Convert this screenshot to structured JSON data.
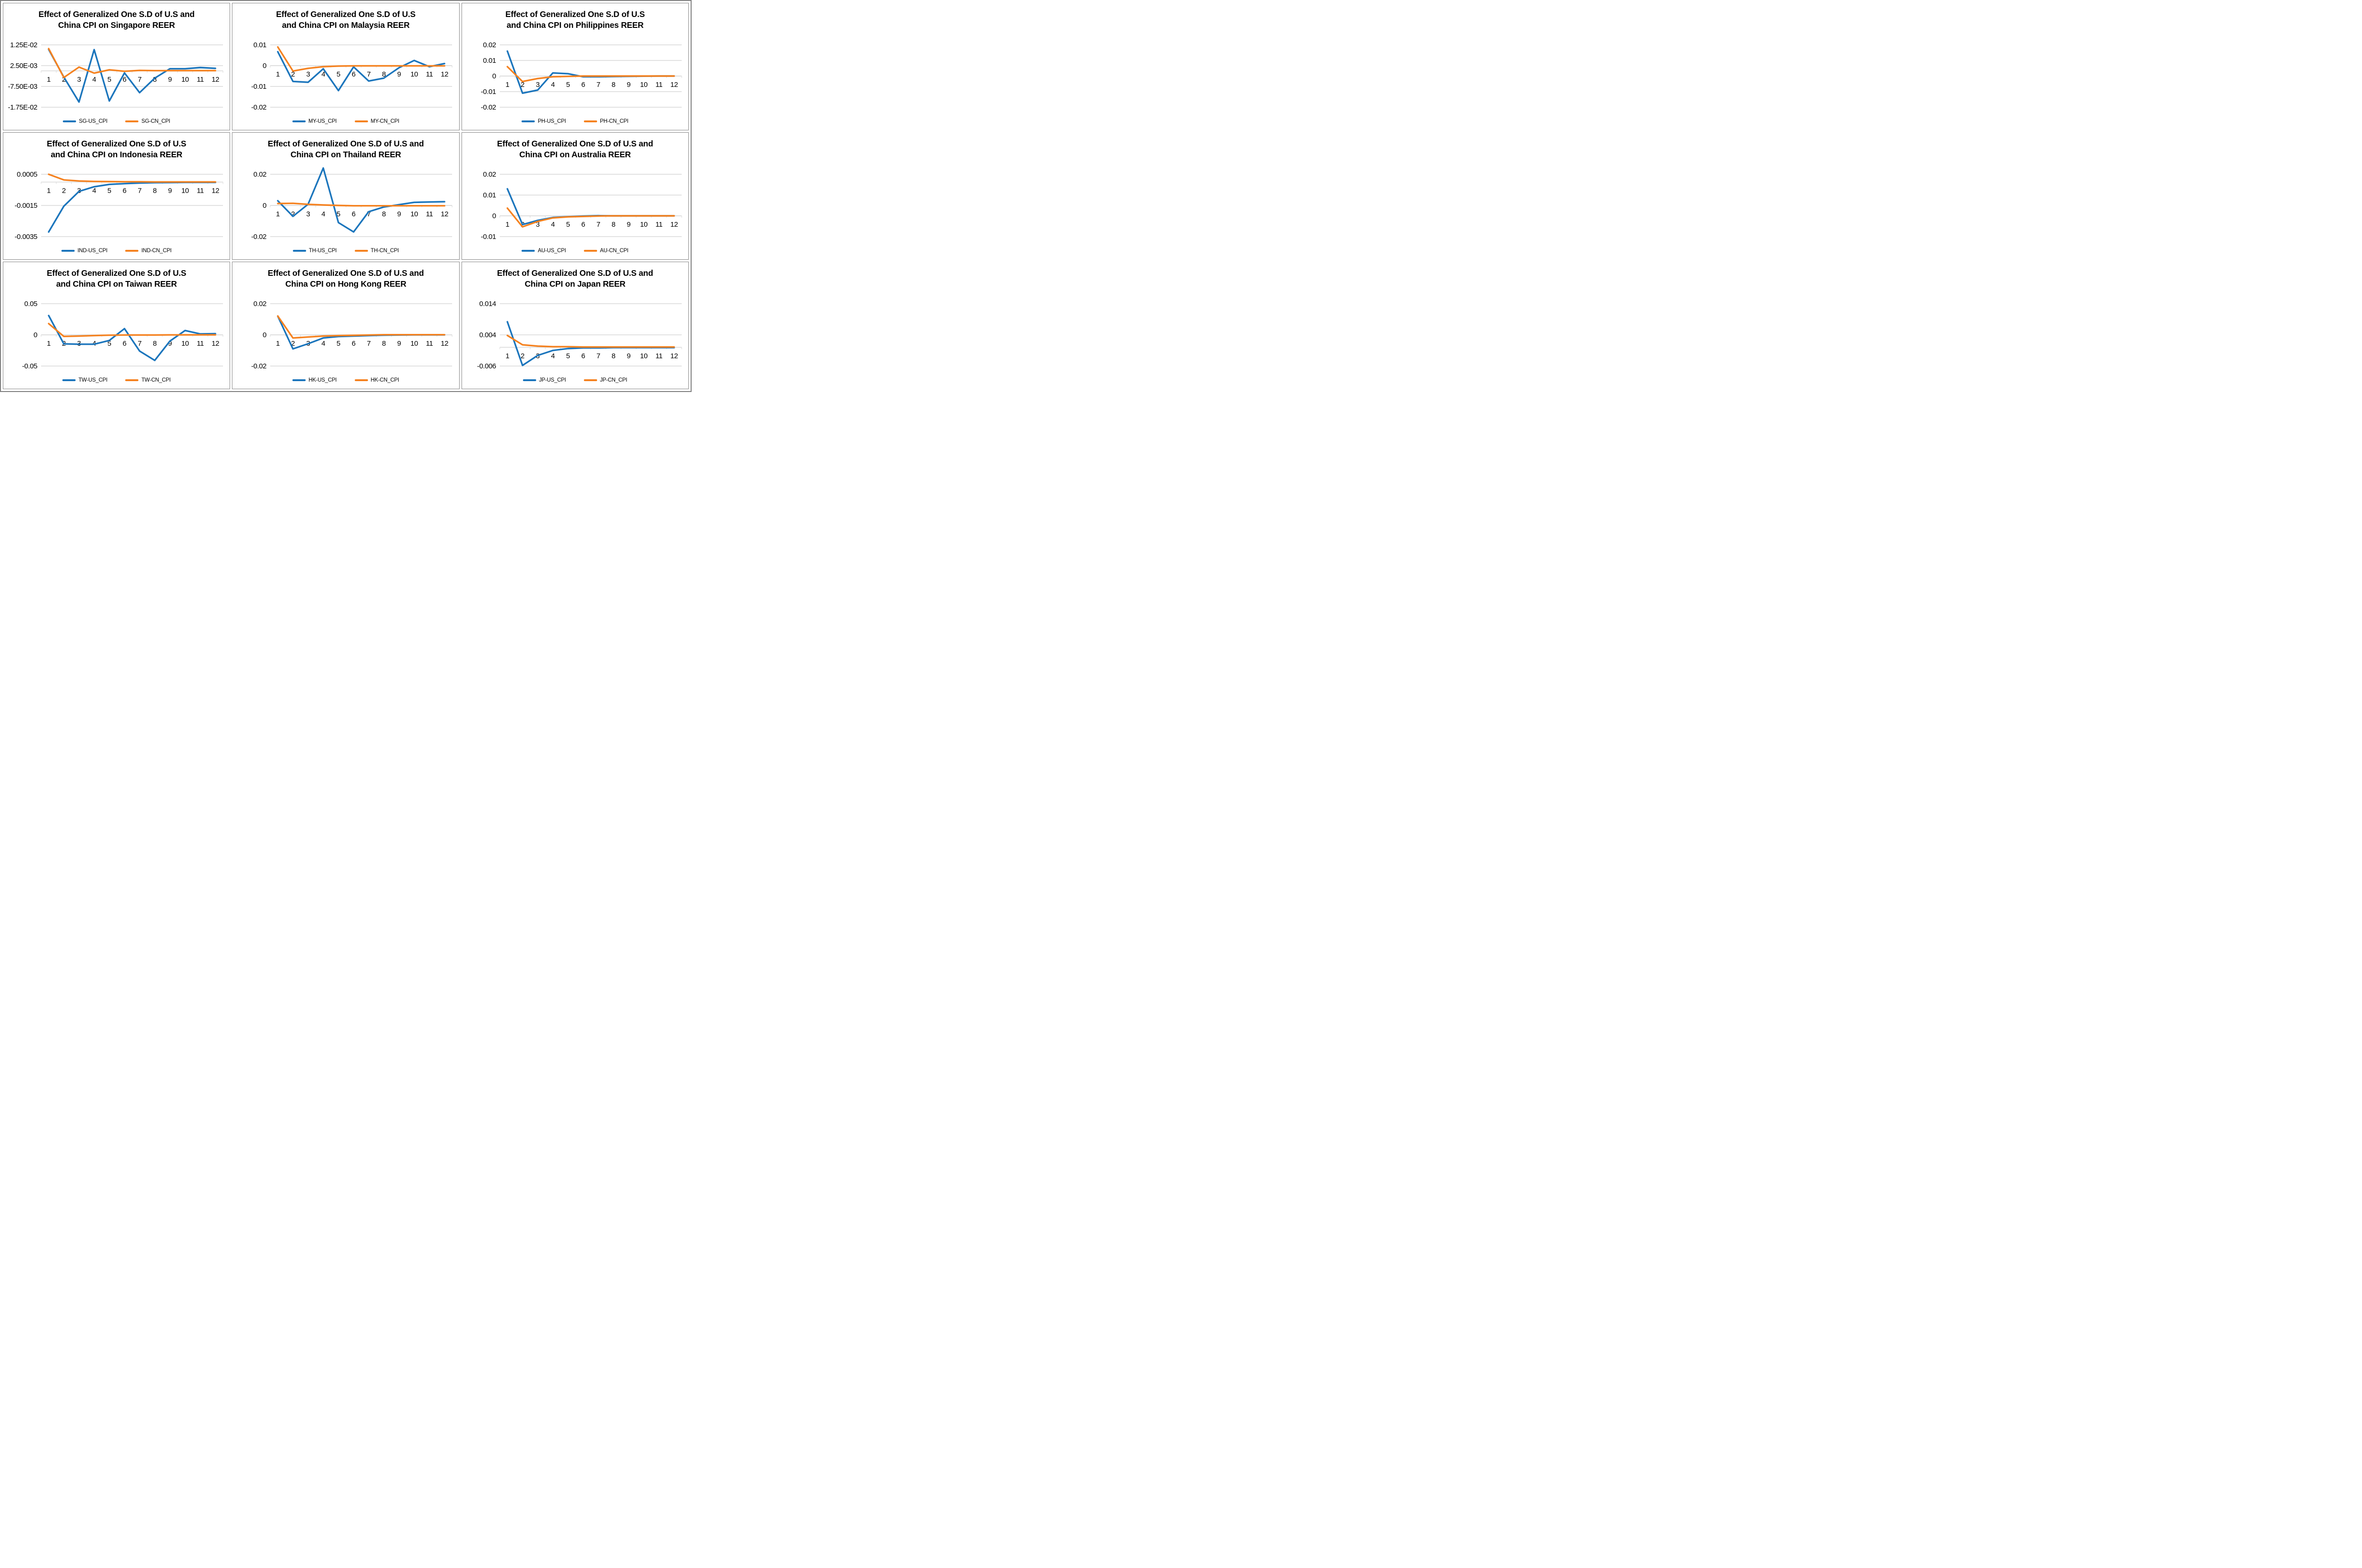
{
  "page": {
    "background": "#ffffff",
    "outer_frame_color": "#7f7f7f",
    "panel_border_color": "#898989"
  },
  "colors": {
    "us_line": "#1b75bc",
    "cn_line": "#f58220",
    "gridline": "#d9d9d9",
    "axis_line": "#d9d9d9",
    "text": "#000000"
  },
  "chart_data": [
    {
      "id": "singapore",
      "type": "line",
      "title_line1": "Effect of Generalized One S.D of U.S and",
      "title_line2": "China CPI on Singapore REER",
      "x": [
        1,
        2,
        3,
        4,
        5,
        6,
        7,
        8,
        9,
        10,
        11,
        12
      ],
      "y_ticks": [
        {
          "label": "1.25E-02",
          "value": 0.0125
        },
        {
          "label": "2.50E-03",
          "value": 0.0025
        },
        {
          "label": "-7.50E-03",
          "value": -0.0075
        },
        {
          "label": "-1.75E-02",
          "value": -0.0175
        }
      ],
      "ylim": [
        -0.0175,
        0.0125
      ],
      "grid": true,
      "legend_position": "bottom",
      "series": [
        {
          "name": "SG-US_CPI",
          "color_key": "us_line",
          "values": [
            0.0103,
            -0.003,
            -0.015,
            0.0102,
            -0.0145,
            -0.001,
            -0.0105,
            -0.0035,
            0.001,
            0.001,
            0.0016,
            0.0012
          ]
        },
        {
          "name": "SG-CN_CPI",
          "color_key": "cn_line",
          "values": [
            0.0107,
            -0.0032,
            0.0018,
            -0.0011,
            0.0005,
            -0.0002,
            0.0002,
            0.0001,
            0.0001,
            0.0001,
            0.0001,
            0.0001
          ]
        }
      ]
    },
    {
      "id": "malaysia",
      "type": "line",
      "title_line1": "Effect of Generalized One S.D of U.S",
      "title_line2": "and China CPI on Malaysia REER",
      "x": [
        1,
        2,
        3,
        4,
        5,
        6,
        7,
        8,
        9,
        10,
        11,
        12
      ],
      "y_ticks": [
        {
          "label": "0.01",
          "value": 0.01
        },
        {
          "label": "0",
          "value": 0
        },
        {
          "label": "-0.01",
          "value": -0.01
        },
        {
          "label": "-0.02",
          "value": -0.02
        }
      ],
      "ylim": [
        -0.02,
        0.01
      ],
      "grid": true,
      "legend_position": "bottom",
      "series": [
        {
          "name": "MY-US_CPI",
          "color_key": "us_line",
          "values": [
            0.0067,
            -0.0076,
            -0.008,
            -0.0015,
            -0.012,
            -0.0006,
            -0.0074,
            -0.006,
            -0.001,
            0.0025,
            -0.0005,
            0.001
          ]
        },
        {
          "name": "MY-CN_CPI",
          "color_key": "cn_line",
          "values": [
            0.009,
            -0.0026,
            -0.0013,
            -0.0005,
            -0.0002,
            -0.0001,
            -0.0001,
            -0.0001,
            -0.0001,
            -0.0001,
            -0.0001,
            -0.0001
          ]
        }
      ]
    },
    {
      "id": "philippines",
      "type": "line",
      "title_line1": "Effect of Generalized One S.D of U.S",
      "title_line2": "and China CPI on Philippines REER",
      "x": [
        1,
        2,
        3,
        4,
        5,
        6,
        7,
        8,
        9,
        10,
        11,
        12
      ],
      "y_ticks": [
        {
          "label": "0.02",
          "value": 0.02
        },
        {
          "label": "0.01",
          "value": 0.01
        },
        {
          "label": "0",
          "value": 0
        },
        {
          "label": "-0.01",
          "value": -0.01
        },
        {
          "label": "-0.02",
          "value": -0.02
        }
      ],
      "ylim": [
        -0.02,
        0.02
      ],
      "grid": true,
      "legend_position": "bottom",
      "series": [
        {
          "name": "PH-US_CPI",
          "color_key": "us_line",
          "values": [
            0.016,
            -0.011,
            -0.009,
            0.002,
            0.0015,
            -0.0005,
            -0.0005,
            -0.0003,
            -0.0002,
            -0.0001,
            0,
            0
          ]
        },
        {
          "name": "PH-CN_CPI",
          "color_key": "cn_line",
          "values": [
            0.006,
            -0.0035,
            -0.0016,
            -0.0005,
            -0.0002,
            0,
            0,
            0,
            0,
            0,
            0,
            0
          ]
        }
      ]
    },
    {
      "id": "indonesia",
      "type": "line",
      "title_line1": "Effect of Generalized One S.D of U.S",
      "title_line2": "and China CPI on Indonesia REER",
      "x": [
        1,
        2,
        3,
        4,
        5,
        6,
        7,
        8,
        9,
        10,
        11,
        12
      ],
      "y_ticks": [
        {
          "label": "0.0005",
          "value": 0.0005
        },
        {
          "label": "-0.0015",
          "value": -0.0015
        },
        {
          "label": "-0.0035",
          "value": -0.0035
        }
      ],
      "ylim": [
        -0.0035,
        0.0005
      ],
      "grid": true,
      "legend_position": "bottom",
      "series": [
        {
          "name": "IND-US_CPI",
          "color_key": "us_line",
          "values": [
            -0.0032,
            -0.00155,
            -0.0006,
            -0.0003,
            -0.00015,
            -0.0001,
            -6e-05,
            -4e-05,
            -3e-05,
            -2e-05,
            -2e-05,
            -2e-05
          ]
        },
        {
          "name": "IND-CN_CPI",
          "color_key": "cn_line",
          "values": [
            0.0005,
            0.00014,
            7e-05,
            4e-05,
            3e-05,
            2e-05,
            2e-05,
            1e-05,
            1e-05,
            1e-05,
            1e-05,
            1e-05
          ]
        }
      ]
    },
    {
      "id": "thailand",
      "type": "line",
      "title_line1": "Effect of Generalized One S.D of U.S and",
      "title_line2": "China CPI on Thailand REER",
      "x": [
        1,
        2,
        3,
        4,
        5,
        6,
        7,
        8,
        9,
        10,
        11,
        12
      ],
      "y_ticks": [
        {
          "label": "0.02",
          "value": 0.02
        },
        {
          "label": "0",
          "value": 0
        },
        {
          "label": "-0.02",
          "value": -0.02
        }
      ],
      "ylim": [
        -0.02,
        0.02
      ],
      "grid": true,
      "legend_position": "bottom",
      "series": [
        {
          "name": "TH-US_CPI",
          "color_key": "us_line",
          "values": [
            0.003,
            -0.007,
            0.0008,
            0.024,
            -0.011,
            -0.017,
            -0.004,
            -0.001,
            0.0005,
            0.002,
            0.0022,
            0.0024
          ]
        },
        {
          "name": "TH-CN_CPI",
          "color_key": "cn_line",
          "values": [
            0.0012,
            0.0014,
            0.0007,
            0.0003,
            0,
            -0.0002,
            -0.0002,
            -0.0002,
            -0.0002,
            -0.0002,
            -0.0002,
            -0.0002
          ]
        }
      ]
    },
    {
      "id": "australia",
      "type": "line",
      "title_line1": "Effect of Generalized One S.D of U.S and",
      "title_line2": "China CPI on Australia REER",
      "x": [
        1,
        2,
        3,
        4,
        5,
        6,
        7,
        8,
        9,
        10,
        11,
        12
      ],
      "y_ticks": [
        {
          "label": "0.02",
          "value": 0.02
        },
        {
          "label": "0.01",
          "value": 0.01
        },
        {
          "label": "0",
          "value": 0
        },
        {
          "label": "-0.01",
          "value": -0.01
        }
      ],
      "ylim": [
        -0.01,
        0.02
      ],
      "grid": true,
      "legend_position": "bottom",
      "series": [
        {
          "name": "AU-US_CPI",
          "color_key": "us_line",
          "values": [
            0.013,
            -0.0042,
            -0.0022,
            -0.0008,
            -0.0004,
            -0.0001,
            0.0001,
            0,
            0,
            0,
            0,
            0
          ]
        },
        {
          "name": "AU-CN_CPI",
          "color_key": "cn_line",
          "values": [
            0.0037,
            -0.0053,
            -0.0027,
            -0.001,
            -0.0005,
            -0.0003,
            -0.0001,
            0,
            0,
            0,
            0,
            0
          ]
        }
      ]
    },
    {
      "id": "taiwan",
      "type": "line",
      "title_line1": "Effect of Generalized One S.D of U.S",
      "title_line2": "and China CPI on Taiwan REER",
      "x": [
        1,
        2,
        3,
        4,
        5,
        6,
        7,
        8,
        9,
        10,
        11,
        12
      ],
      "y_ticks": [
        {
          "label": "0.05",
          "value": 0.05
        },
        {
          "label": "0",
          "value": 0
        },
        {
          "label": "-0.05",
          "value": -0.05
        }
      ],
      "ylim": [
        -0.05,
        0.05
      ],
      "grid": true,
      "legend_position": "bottom",
      "series": [
        {
          "name": "TW-US_CPI",
          "color_key": "us_line",
          "values": [
            0.031,
            -0.0145,
            -0.015,
            -0.015,
            -0.009,
            0.01,
            -0.026,
            -0.041,
            -0.01,
            0.007,
            0.0015,
            0.002
          ]
        },
        {
          "name": "TW-CN_CPI",
          "color_key": "cn_line",
          "values": [
            0.018,
            -0.0025,
            -0.002,
            -0.0012,
            -0.0005,
            -0.0002,
            -0.0002,
            -0.0002,
            -0.0001,
            0,
            0,
            0
          ]
        }
      ]
    },
    {
      "id": "hong-kong",
      "type": "line",
      "title_line1": "Effect of Generalized One S.D of U.S and",
      "title_line2": "China CPI on Hong Kong REER",
      "x": [
        1,
        2,
        3,
        4,
        5,
        6,
        7,
        8,
        9,
        10,
        11,
        12
      ],
      "y_ticks": [
        {
          "label": "0.02",
          "value": 0.02
        },
        {
          "label": "0",
          "value": 0
        },
        {
          "label": "-0.02",
          "value": -0.02
        }
      ],
      "ylim": [
        -0.02,
        0.02
      ],
      "grid": true,
      "legend_position": "bottom",
      "series": [
        {
          "name": "HK-US_CPI",
          "color_key": "us_line",
          "values": [
            0.012,
            -0.009,
            -0.0057,
            -0.002,
            -0.0011,
            -0.0008,
            -0.0005,
            -0.0002,
            -0.0001,
            0,
            0,
            0
          ]
        },
        {
          "name": "HK-CN_CPI",
          "color_key": "cn_line",
          "values": [
            0.0121,
            -0.002,
            -0.0014,
            -0.0008,
            -0.0005,
            -0.0003,
            -0.0001,
            0.0001,
            0.0001,
            0.0001,
            0.0001,
            0.0001
          ]
        }
      ]
    },
    {
      "id": "japan",
      "type": "line",
      "title_line1": "Effect of Generalized One S.D of U.S and",
      "title_line2": "China CPI on Japan REER",
      "x": [
        1,
        2,
        3,
        4,
        5,
        6,
        7,
        8,
        9,
        10,
        11,
        12
      ],
      "y_ticks": [
        {
          "label": "0.014",
          "value": 0.014
        },
        {
          "label": "0.004",
          "value": 0.004
        },
        {
          "label": "-0.006",
          "value": -0.006
        }
      ],
      "ylim": [
        -0.006,
        0.014
      ],
      "grid": true,
      "legend_position": "bottom",
      "series": [
        {
          "name": "JP-US_CPI",
          "color_key": "us_line",
          "values": [
            0.0082,
            -0.0058,
            -0.0026,
            -0.001,
            -0.0004,
            -0.0002,
            -0.0002,
            -0.0001,
            -0.0001,
            -0.0001,
            -0.0001,
            -0.0001
          ]
        },
        {
          "name": "JP-CN_CPI",
          "color_key": "cn_line",
          "values": [
            0.0038,
            0.0008,
            0.0004,
            0.0002,
            0.0002,
            0.0001,
            0.0001,
            0.0001,
            0.0001,
            0.0001,
            0.0001,
            0.0001
          ]
        }
      ]
    }
  ]
}
